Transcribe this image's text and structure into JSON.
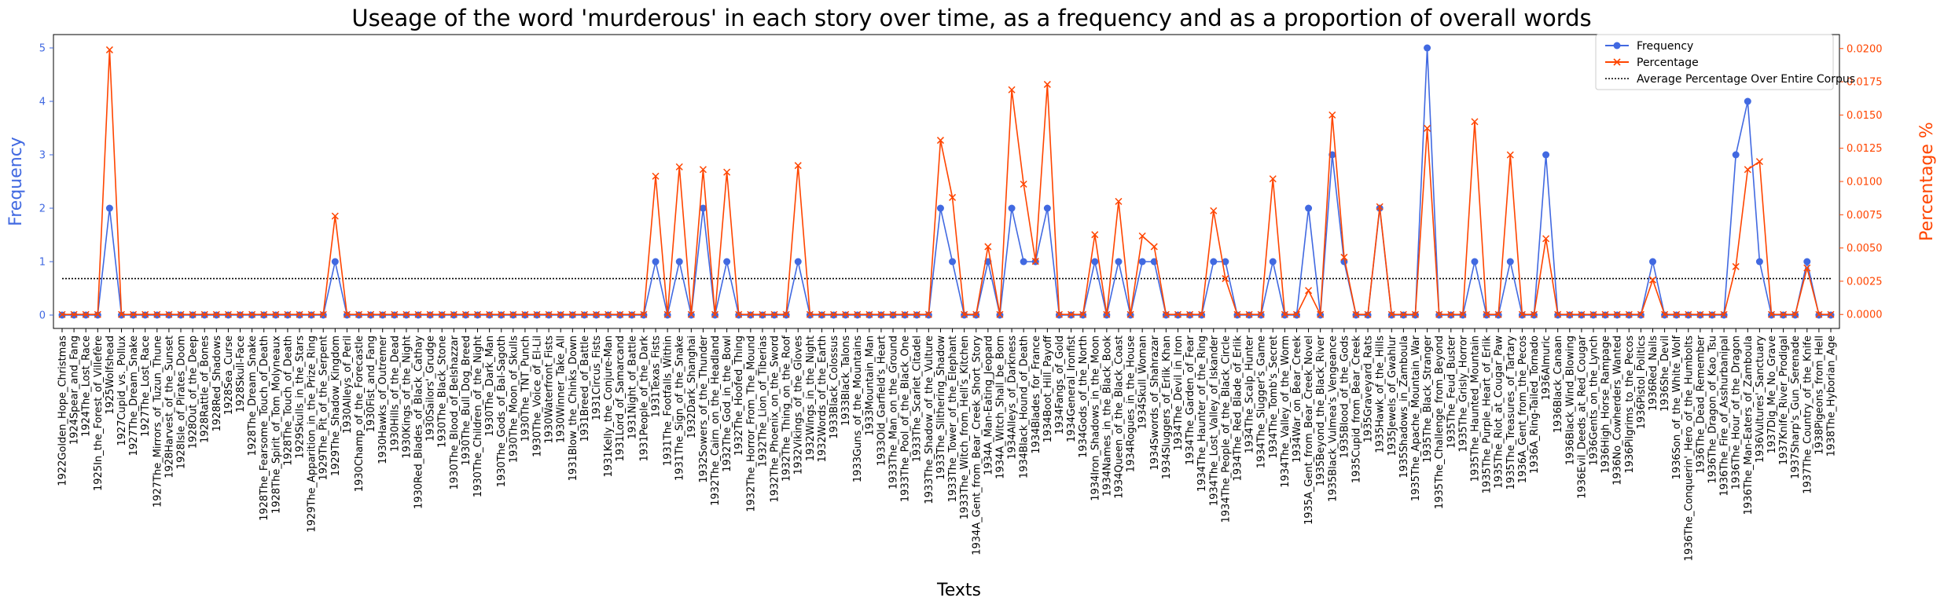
{
  "chart_data": {
    "type": "line",
    "title": "Useage of the word 'murderous' in each story over time, as a frequency and as a proportion of overall words",
    "xlabel": "Texts",
    "ylabel": "Frequency",
    "y2label": "Percentage %",
    "ylim": [
      -0.25,
      5.25
    ],
    "y2lim": [
      -0.00105,
      0.02105
    ],
    "yticks": [
      "0",
      "1",
      "2",
      "3",
      "4",
      "5"
    ],
    "y2ticks": [
      "0.0000",
      "0.0025",
      "0.0050",
      "0.0075",
      "0.0100",
      "0.0125",
      "0.0150",
      "0.0175",
      "0.0200"
    ],
    "legend_position": "top-right",
    "colors": {
      "frequency": "#4169e1",
      "percentage": "#ff4500",
      "average": "#000000"
    },
    "average_percentage": 0.0027,
    "categories": [
      "1922Golden_Hope_Christmas",
      "1924Spear_and_Fang",
      "1924The_Lost_Race",
      "1925In_the_Forest_of_Villefère",
      "1925Wolfshead",
      "1927Cupid_vs._Pollux",
      "1927The_Dream_Snake",
      "1927The_Lost_Race",
      "1927The_Mirrors_of_Tuzun_Thune",
      "1928Harvest_of_the_Sunset",
      "1928Isle_of_Pirates_Doom",
      "1928Out_of_the_Deep",
      "1928Rattle_of_Bones",
      "1928Red_Shadows",
      "1928Sea_Curse",
      "1928Skull-Face",
      "1928The_Dream_Snake",
      "1928The_Fearsome_Touch_of_Death",
      "1928The_Spirit_of_Tom_Molyneaux",
      "1928The_Touch_of_Death",
      "1929Skulls_in_the_Stars",
      "1929The_Apparition_in_the_Prize_Ring",
      "1929The_Pit_of_the_Serpent",
      "1929The_Shadow_Kingdom",
      "1930Alleys_of_Peril",
      "1930Champ_of_the_Forecastle",
      "1930Fist_and_Fang",
      "1930Hawks_of_Outremer",
      "1930Hills_of_the_Dead",
      "1930Kings_of_the_Night",
      "1930Red_Blades_of_Black_Cathay",
      "1930Sailors'_Grudge",
      "1930The_Black_Stone",
      "1930The_Blood_of_Belshazzar",
      "1930The_Bull_Dog_Breed",
      "1930The_Children_of_the_Night",
      "1930The_Dark_Man",
      "1930The_Gods_of_Bal-Sagoth",
      "1930The_Moon_of_Skulls",
      "1930The_TNT_Punch",
      "1930The_Voice_of_El-Lil",
      "1930Waterfront_Fists",
      "1930Winner_Take_All",
      "1931Blow_the_Chinks_Down",
      "1931Breed_of_Battle",
      "1931Circus_Fists",
      "1931Kelly_the_Conjure-Man",
      "1931Lord_of_Samarcand",
      "1931Night_of_Battle",
      "1931People_of_the_Dark",
      "1931Texas_Fists",
      "1931The_Footfalls_Within",
      "1931The_Sign_of_the_Snake",
      "1932Dark_Shanghai",
      "1932Sowers_of_the_Thunder",
      "1932The_Cairn_on_the_Headland",
      "1932The_God_in_the_Bowl",
      "1932The_Hoofed_Thing",
      "1932The_Horror_From_The_Mound",
      "1932The_Lion_of_Tiberias",
      "1932The_Phoenix_on_the_Sword",
      "1932The_Thing_on_the_Roof",
      "1932Vikings_of_the_Gloves",
      "1932Wings_in_the_Night",
      "1932Words_of_the_Earth",
      "1933Black_Colossus",
      "1933Black_Talons",
      "1933Guns_of_the_Mountains",
      "1933Mountain_Man",
      "1933Old_Garfield's_Heart",
      "1933The_Man_on_the_Ground",
      "1933The_Pool_of_the_Black_One",
      "1933The_Scarlet_Citadel",
      "1933The_Shadow_of_the_Vulture",
      "1933The_Slithering_Shadow",
      "1933The_Tower_of_the_Elephant",
      "1933The_Witch_from_Hell's_Kitchen",
      "1934A_Gent_from_Bear_Creek_Short_Story",
      "1934A_Man-Eating_Jeopard",
      "1934A_Witch_Shall_be_Born",
      "1934Alleys_of_Darkness",
      "1934Black_Hound_of_Death",
      "1934Blades_for_France",
      "1934Boot_Hill_Payoff",
      "1934Fangs_of_Gold",
      "1934General_Ironfist",
      "1934Gods_of_the_North",
      "1934Iron_Shadows_in_the_Moon",
      "1934Names_in_the_Black_Book",
      "1934Queen_of_the_Black_Coast",
      "1934Rogues_in_the_House",
      "1934Skull_Woman",
      "1934Swords_of_Shahrazar",
      "1934Sluggers_of_Erlik_Khan",
      "1934The_Devil_in_Iron",
      "1934The_Garden_of_Fear",
      "1934The_Haunter_of_the_Ring",
      "1934The_Lost_Valley_of_Iskander",
      "1934The_People_of_the_Black_Circle",
      "1934The_Red_Blade_of_Erlik",
      "1934The_Scalp_Hunter",
      "1934The_Slugger's_Game",
      "1934The_Tomb's_Secret",
      "1934The_Valley_of_the_Worm",
      "1934War_on_Bear_Creek",
      "1935A_Gent_from_Bear_Creek_Novel",
      "1935Beyond_the_Black_River",
      "1935Black_Vulmea's_Vengeance",
      "1935Blood_of_the_Gods",
      "1935Cupid_from_Bear_Creek",
      "1935Graveyard_Rats",
      "1935Hawk_of_the_Hills",
      "1935Jewels_of_Gwahlur",
      "1935Shadows_in_Zamboula",
      "1935The_Apache_Mountain_War",
      "1935The_Black_Stranger",
      "1935The_Challenge_from_Beyond",
      "1935The_Feud_Buster",
      "1935The_Grisly_Horror",
      "1935The_Haunted_Mountain",
      "1935The_Purple_Heart_of_Erlik",
      "1935The_Riot_at_Cougar_Paw",
      "1935The_Treasures_of_Tartary",
      "1936A_Gent_from_the_Pecos",
      "1936A_Ring-Tailed_Tornado",
      "1936Almuric",
      "1936Black_Canaan",
      "1936Black_Wind_Blowing",
      "1936Evil_Deeds_at_Red_Cougar",
      "1936Gents_on_the_Lynch",
      "1936High_Horse_Rampage",
      "1936No_Cowherders_Wanted",
      "1936Pilgrims_to_the_Pecos",
      "1936Pistol_Politics",
      "1936Red_Nails",
      "1936She_Devil",
      "1936Son_of_the_White_Wolf",
      "1936The_Conquerin'_Hero_of_the_Humbolts",
      "1936The_Dead_Remember",
      "1936The_Dragon_of_Kao_Tsu",
      "1936The_Fire_of_Asshurbanipal",
      "1936The_Hour_of_the_Dragon",
      "1936The_Man-Eaters_of_Zamboula",
      "1936Vultures'_Sanctuary",
      "1937Dig_Me_No_Grave",
      "1937Knife_River_Prodigal",
      "1937Sharp's_Gun_Serenade",
      "1937The_Country_of_the_Knife",
      "1938Pigeons_from_Hell",
      "1938The_Hyborian_Age"
    ],
    "series": [
      {
        "name": "Frequency",
        "axis": "left",
        "values": [
          0,
          0,
          0,
          0,
          2,
          0,
          0,
          0,
          0,
          0,
          0,
          0,
          0,
          0,
          0,
          0,
          0,
          0,
          0,
          0,
          0,
          0,
          0,
          1,
          0,
          0,
          0,
          0,
          0,
          0,
          0,
          0,
          0,
          0,
          0,
          0,
          0,
          0,
          0,
          0,
          0,
          0,
          0,
          0,
          0,
          0,
          0,
          0,
          0,
          0,
          1,
          0,
          1,
          0,
          2,
          0,
          1,
          0,
          0,
          0,
          0,
          0,
          1,
          0,
          0,
          0,
          0,
          0,
          0,
          0,
          0,
          0,
          0,
          0,
          2,
          1,
          0,
          0,
          1,
          0,
          2,
          1,
          1,
          2,
          0,
          0,
          0,
          1,
          0,
          1,
          0,
          1,
          1,
          0,
          0,
          0,
          0,
          1,
          1,
          0,
          0,
          0,
          1,
          0,
          0,
          2,
          0,
          3,
          1,
          0,
          0,
          2,
          0,
          0,
          0,
          5,
          0,
          0,
          0,
          1,
          0,
          0,
          1,
          0,
          0,
          3,
          0,
          0,
          0,
          0,
          0,
          0,
          0,
          0,
          1,
          0,
          0,
          0,
          0,
          0,
          0,
          3,
          4,
          1,
          0,
          0,
          0,
          1,
          0,
          0
        ]
      },
      {
        "name": "Percentage",
        "axis": "right",
        "values": [
          0,
          0,
          0,
          0,
          0.0199,
          0,
          0,
          0,
          0,
          0,
          0,
          0,
          0,
          0,
          0,
          0,
          0,
          0,
          0,
          0,
          0,
          0,
          0,
          0.0074,
          0,
          0,
          0,
          0,
          0,
          0,
          0,
          0,
          0,
          0,
          0,
          0,
          0,
          0,
          0,
          0,
          0,
          0,
          0,
          0,
          0,
          0,
          0,
          0,
          0,
          0,
          0.0104,
          0,
          0.0111,
          0,
          0.0109,
          0,
          0.0107,
          0,
          0,
          0,
          0,
          0,
          0.0112,
          0,
          0,
          0,
          0,
          0,
          0,
          0,
          0,
          0,
          0,
          0,
          0.0131,
          0.0088,
          0,
          0,
          0.0051,
          0,
          0.0169,
          0.0098,
          0.004,
          0.0173,
          0,
          0,
          0,
          0.006,
          0,
          0.0085,
          0,
          0.0059,
          0.0051,
          0,
          0,
          0,
          0,
          0.0078,
          0.0027,
          0,
          0,
          0,
          0.0102,
          0,
          0,
          0.0018,
          0,
          0.015,
          0.0043,
          0,
          0,
          0.0081,
          0,
          0,
          0,
          0.014,
          0,
          0,
          0,
          0.0145,
          0,
          0,
          0.012,
          0,
          0,
          0.0057,
          0,
          0,
          0,
          0,
          0,
          0,
          0,
          0,
          0.0026,
          0,
          0,
          0,
          0,
          0,
          0,
          0.0036,
          0.0109,
          0.0115,
          0,
          0,
          0,
          0.0035,
          0,
          0
        ]
      },
      {
        "name": "Average Percentage Over Entire Corpus",
        "axis": "right",
        "style": "dotted"
      }
    ]
  }
}
